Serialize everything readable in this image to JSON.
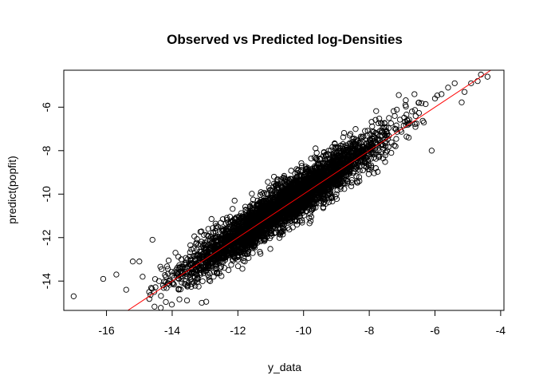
{
  "chart_data": {
    "type": "scatter",
    "title": "Observed vs Predicted log-Densities",
    "xlabel": "y_data",
    "ylabel": "predict(popfit)",
    "xlim": [
      -17.3,
      -3.9
    ],
    "ylim": [
      -15.35,
      -4.3
    ],
    "x_ticks": [
      -16,
      -14,
      -12,
      -10,
      -8,
      -6,
      -4
    ],
    "x_tick_labels": [
      "-16",
      "-14",
      "-12",
      "-10",
      "-8",
      "-6",
      "-4"
    ],
    "y_ticks": [
      -14,
      -12,
      -10,
      -8,
      -6
    ],
    "y_tick_labels": [
      "-14",
      "-12",
      "-10",
      "-8",
      "-6"
    ],
    "grid": false,
    "marker": "open-circle",
    "point_color": "#000000",
    "reference_line": {
      "slope": 1,
      "intercept": 0,
      "color": "#ff0000"
    },
    "series": [
      {
        "points": [
          [
            -17.0,
            -14.7
          ],
          [
            -15.7,
            -13.7
          ],
          [
            -15.4,
            -14.4
          ],
          [
            -15.2,
            -13.1
          ],
          [
            -15.0,
            -13.1
          ],
          [
            -14.9,
            -13.8
          ],
          [
            -14.7,
            -14.5
          ],
          [
            -14.6,
            -12.1
          ],
          [
            -14.4,
            -14.0
          ],
          [
            -13.9,
            -12.7
          ],
          [
            -13.5,
            -13.6
          ],
          [
            -13.1,
            -15.0
          ],
          [
            -12.9,
            -11.6
          ],
          [
            -12.3,
            -11.3
          ],
          [
            -12.1,
            -10.3
          ],
          [
            -11.8,
            -11.2
          ],
          [
            -11.4,
            -10.3
          ],
          [
            -10.9,
            -9.2
          ],
          [
            -9.6,
            -8.1
          ],
          [
            -8.8,
            -7.7
          ],
          [
            -8.6,
            -7.3
          ],
          [
            -8.2,
            -7.6
          ],
          [
            -7.6,
            -7.3
          ],
          [
            -7.4,
            -6.5
          ],
          [
            -6.9,
            -5.9
          ],
          [
            -6.7,
            -6.2
          ],
          [
            -6.5,
            -5.8
          ],
          [
            -6.1,
            -8.0
          ],
          [
            -6.0,
            -5.6
          ],
          [
            -5.8,
            -5.4
          ],
          [
            -5.6,
            -5.1
          ],
          [
            -5.4,
            -4.9
          ],
          [
            -5.1,
            -5.3
          ],
          [
            -4.9,
            -4.9
          ],
          [
            -4.7,
            -4.8
          ],
          [
            -4.6,
            -4.5
          ],
          [
            -4.4,
            -4.6
          ],
          [
            -16.1,
            -13.9
          ],
          [
            -13.8,
            -13.9
          ],
          [
            -12.6,
            -13.1
          ],
          [
            -12.4,
            -12.9
          ],
          [
            -10.2,
            -11.4
          ],
          [
            -9.4,
            -10.6
          ],
          [
            -9.0,
            -10.0
          ],
          [
            -8.3,
            -9.4
          ],
          [
            -7.7,
            -8.3
          ],
          [
            -7.2,
            -7.8
          ],
          [
            -6.8,
            -7.4
          ],
          [
            -12.0,
            -12.9
          ],
          [
            -11.0,
            -11.8
          ]
        ]
      }
    ],
    "dense_band": {
      "description_points_generated": 4200,
      "x_center_min": -14.8,
      "x_center_max": -5.0,
      "x_mean": -10.6,
      "x_sd": 1.45,
      "residual_sd": 0.5
    }
  }
}
